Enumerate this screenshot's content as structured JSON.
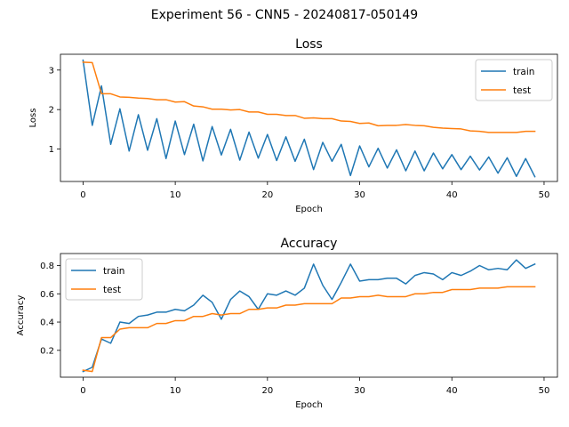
{
  "suptitle": "Experiment 56 - CNN5 - 20240817-050149",
  "chart_data": [
    {
      "type": "line",
      "title": "Loss",
      "xlabel": "Epoch",
      "ylabel": "Loss",
      "xlim": [
        -2.45,
        51.45
      ],
      "ylim": [
        0.18,
        3.4
      ],
      "xticks": [
        0,
        10,
        20,
        30,
        40,
        50
      ],
      "yticks": [
        1,
        2,
        3
      ],
      "legend": "upper right",
      "x": [
        0,
        1,
        2,
        3,
        4,
        5,
        6,
        7,
        8,
        9,
        10,
        11,
        12,
        13,
        14,
        15,
        16,
        17,
        18,
        19,
        20,
        21,
        22,
        23,
        24,
        25,
        26,
        27,
        28,
        29,
        30,
        31,
        32,
        33,
        34,
        35,
        36,
        37,
        38,
        39,
        40,
        41,
        42,
        43,
        44,
        45,
        46,
        47,
        48,
        49
      ],
      "series": [
        {
          "name": "train",
          "color": "#1f77b4",
          "values": [
            3.25,
            1.6,
            2.6,
            1.12,
            2.02,
            0.95,
            1.87,
            0.97,
            1.77,
            0.76,
            1.71,
            0.86,
            1.63,
            0.7,
            1.57,
            0.85,
            1.5,
            0.72,
            1.43,
            0.77,
            1.37,
            0.71,
            1.31,
            0.69,
            1.25,
            0.48,
            1.17,
            0.69,
            1.12,
            0.33,
            1.08,
            0.55,
            1.02,
            0.52,
            0.98,
            0.45,
            0.95,
            0.45,
            0.9,
            0.5,
            0.86,
            0.48,
            0.82,
            0.47,
            0.8,
            0.39,
            0.78,
            0.31,
            0.76,
            0.3
          ]
        },
        {
          "name": "test",
          "color": "#ff7f0e",
          "values": [
            3.2,
            3.19,
            2.4,
            2.4,
            2.32,
            2.31,
            2.29,
            2.28,
            2.25,
            2.25,
            2.19,
            2.2,
            2.09,
            2.07,
            2.01,
            2.01,
            1.99,
            2.0,
            1.94,
            1.94,
            1.88,
            1.88,
            1.85,
            1.85,
            1.78,
            1.79,
            1.77,
            1.77,
            1.71,
            1.7,
            1.65,
            1.66,
            1.59,
            1.6,
            1.6,
            1.62,
            1.6,
            1.59,
            1.55,
            1.53,
            1.52,
            1.51,
            1.46,
            1.45,
            1.42,
            1.42,
            1.42,
            1.42,
            1.45,
            1.45
          ]
        }
      ]
    },
    {
      "type": "line",
      "title": "Accuracy",
      "xlabel": "Epoch",
      "ylabel": "Accuracy",
      "xlim": [
        -2.45,
        51.45
      ],
      "ylim": [
        0.01,
        0.885
      ],
      "xticks": [
        0,
        10,
        20,
        30,
        40,
        50
      ],
      "yticks": [
        0.2,
        0.4,
        0.6,
        0.8
      ],
      "legend": "upper left",
      "x": [
        0,
        1,
        2,
        3,
        4,
        5,
        6,
        7,
        8,
        9,
        10,
        11,
        12,
        13,
        14,
        15,
        16,
        17,
        18,
        19,
        20,
        21,
        22,
        23,
        24,
        25,
        26,
        27,
        28,
        29,
        30,
        31,
        32,
        33,
        34,
        35,
        36,
        37,
        38,
        39,
        40,
        41,
        42,
        43,
        44,
        45,
        46,
        47,
        48,
        49
      ],
      "series": [
        {
          "name": "train",
          "color": "#1f77b4",
          "values": [
            0.05,
            0.08,
            0.28,
            0.25,
            0.4,
            0.39,
            0.44,
            0.45,
            0.47,
            0.47,
            0.49,
            0.48,
            0.52,
            0.59,
            0.54,
            0.42,
            0.56,
            0.62,
            0.58,
            0.49,
            0.6,
            0.59,
            0.62,
            0.59,
            0.64,
            0.81,
            0.66,
            0.56,
            0.68,
            0.81,
            0.69,
            0.7,
            0.7,
            0.71,
            0.71,
            0.67,
            0.73,
            0.75,
            0.74,
            0.7,
            0.75,
            0.73,
            0.76,
            0.8,
            0.77,
            0.78,
            0.77,
            0.84,
            0.78,
            0.81
          ]
        },
        {
          "name": "test",
          "color": "#ff7f0e",
          "values": [
            0.06,
            0.05,
            0.29,
            0.29,
            0.35,
            0.36,
            0.36,
            0.36,
            0.39,
            0.39,
            0.41,
            0.41,
            0.44,
            0.44,
            0.46,
            0.45,
            0.46,
            0.46,
            0.49,
            0.49,
            0.5,
            0.5,
            0.52,
            0.52,
            0.53,
            0.53,
            0.53,
            0.53,
            0.57,
            0.57,
            0.58,
            0.58,
            0.59,
            0.58,
            0.58,
            0.58,
            0.6,
            0.6,
            0.61,
            0.61,
            0.63,
            0.63,
            0.63,
            0.64,
            0.64,
            0.64,
            0.65,
            0.65,
            0.65,
            0.65
          ]
        }
      ]
    }
  ]
}
